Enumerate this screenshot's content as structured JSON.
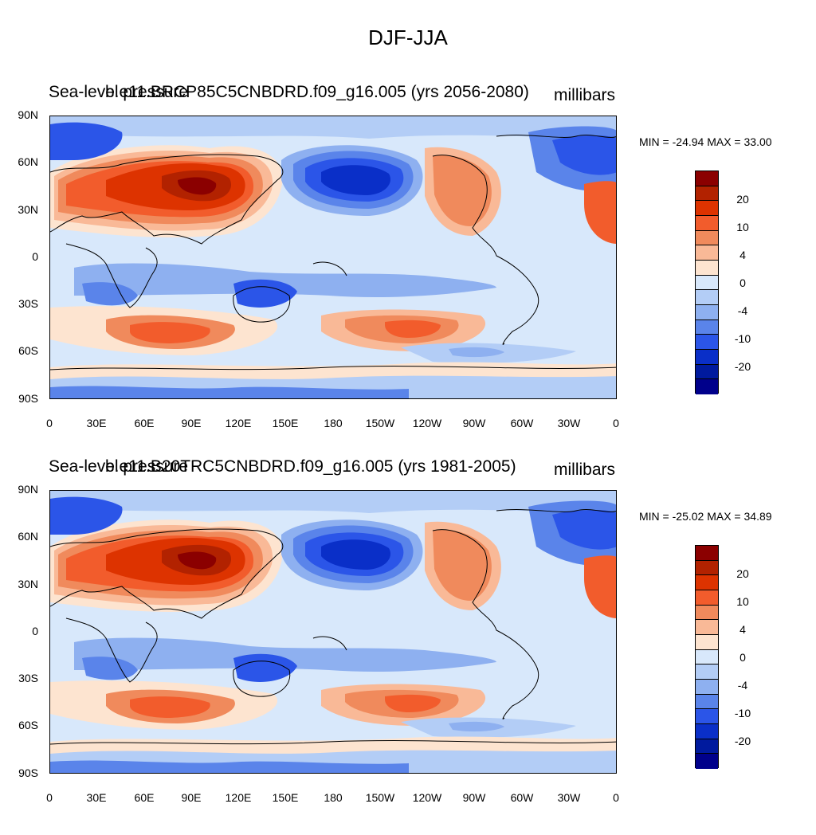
{
  "title": "DJF-JJA",
  "y_ticks": [
    "90N",
    "60N",
    "30N",
    "0",
    "30S",
    "60S",
    "90S"
  ],
  "x_ticks": [
    "0",
    "30E",
    "60E",
    "90E",
    "120E",
    "150E",
    "180",
    "150W",
    "120W",
    "90W",
    "60W",
    "30W",
    "0"
  ],
  "colorbar": {
    "colors": [
      "#8b0000",
      "#b22200",
      "#dd3300",
      "#f25c2c",
      "#f08a5c",
      "#f9b997",
      "#fde4d0",
      "#d8e8fb",
      "#b3cdf6",
      "#8eb0f0",
      "#5a84ea",
      "#2b55e8",
      "#0a2fc8",
      "#001a9e",
      "#00008b"
    ],
    "labels": [
      "20",
      "10",
      "4",
      "0",
      "-4",
      "-10",
      "-20"
    ]
  },
  "panels": [
    {
      "left_title": "Sea-level pressure",
      "center_title": "b.e11.BRCP85C5CNBDRD.f09_g16.005 (yrs 2056-2080)",
      "right_title": "millibars",
      "minmax": "MIN = -24.94 MAX =  33.00"
    },
    {
      "left_title": "Sea-level pressure",
      "center_title": "b.e11.B20TRC5CNBDRD.f09_g16.005 (yrs 1981-2005)",
      "right_title": "millibars",
      "minmax": "MIN = -25.02 MAX =  34.89"
    }
  ]
}
